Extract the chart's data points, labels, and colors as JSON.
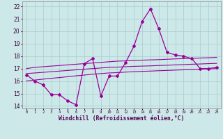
{
  "x_values": [
    0,
    1,
    2,
    3,
    4,
    5,
    6,
    7,
    8,
    9,
    10,
    11,
    12,
    13,
    14,
    15,
    16,
    17,
    18,
    19,
    20,
    21,
    22,
    23
  ],
  "y_main": [
    16.5,
    16.0,
    15.7,
    14.9,
    14.9,
    14.4,
    14.1,
    17.4,
    17.8,
    14.8,
    16.4,
    16.4,
    17.5,
    18.8,
    20.8,
    21.8,
    20.2,
    18.3,
    18.1,
    18.0,
    17.8,
    17.0,
    17.0,
    17.1
  ],
  "y_upper": [
    17.0,
    17.1,
    17.15,
    17.2,
    17.25,
    17.3,
    17.35,
    17.4,
    17.45,
    17.5,
    17.55,
    17.6,
    17.62,
    17.65,
    17.68,
    17.7,
    17.72,
    17.75,
    17.78,
    17.8,
    17.82,
    17.85,
    17.87,
    17.9
  ],
  "y_mid": [
    16.6,
    16.65,
    16.7,
    16.75,
    16.8,
    16.85,
    16.9,
    16.95,
    17.0,
    17.05,
    17.1,
    17.12,
    17.15,
    17.18,
    17.2,
    17.22,
    17.25,
    17.27,
    17.3,
    17.32,
    17.35,
    17.37,
    17.4,
    17.42
  ],
  "y_lower": [
    16.0,
    16.08,
    16.15,
    16.22,
    16.28,
    16.35,
    16.42,
    16.48,
    16.55,
    16.6,
    16.65,
    16.68,
    16.72,
    16.75,
    16.78,
    16.8,
    16.83,
    16.85,
    16.88,
    16.9,
    16.93,
    16.95,
    16.97,
    17.0
  ],
  "line_color": "#990099",
  "bg_color": "#cce8e8",
  "grid_color": "#aacccc",
  "xlabel": "Windchill (Refroidissement éolien,°C)",
  "ylim": [
    13.8,
    22.4
  ],
  "xlim": [
    -0.5,
    23.5
  ],
  "yticks": [
    14,
    15,
    16,
    17,
    18,
    19,
    20,
    21,
    22
  ],
  "xticks": [
    0,
    1,
    2,
    3,
    4,
    5,
    6,
    7,
    8,
    9,
    10,
    11,
    12,
    13,
    14,
    15,
    16,
    17,
    18,
    19,
    20,
    21,
    22,
    23
  ]
}
